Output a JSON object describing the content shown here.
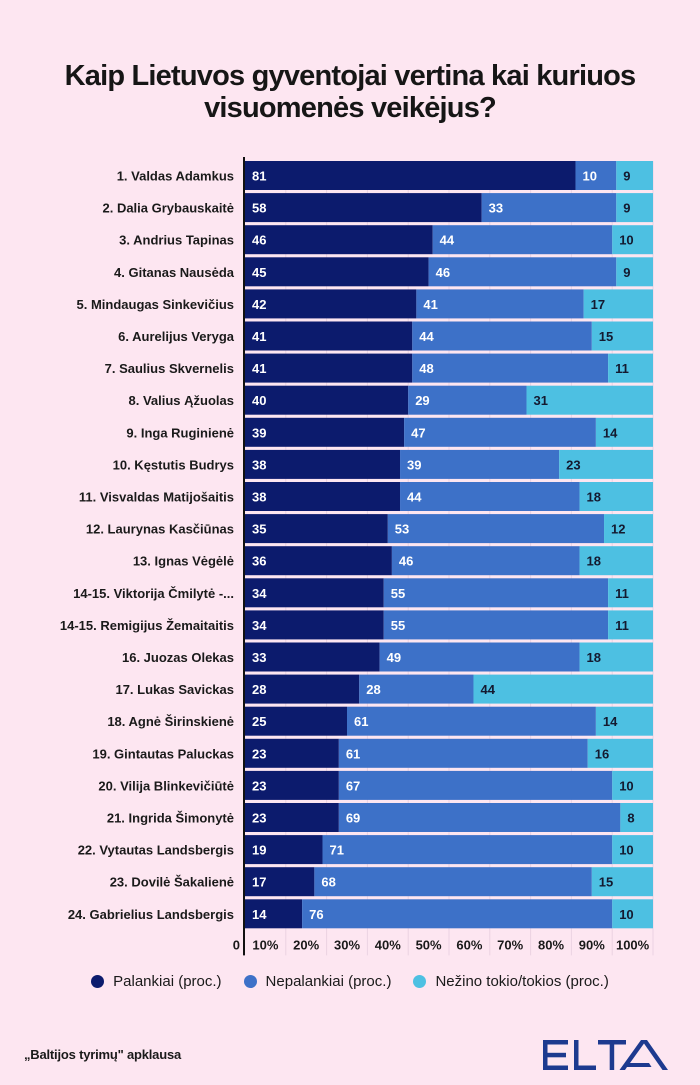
{
  "title_lines": [
    "Kaip Lietuvos gyventojai vertina kai kuriuos",
    "visuomenės veikėjus?"
  ],
  "chart_data": {
    "type": "bar",
    "orientation": "horizontal",
    "stacked": true,
    "title": "Kaip Lietuvos gyventojai vertina kai kuriuos visuomenės veikėjus?",
    "xlabel": "",
    "ylabel": "",
    "xlim": [
      0,
      100
    ],
    "x_ticks": [
      "0",
      "10%",
      "20%",
      "30%",
      "40%",
      "50%",
      "60%",
      "70%",
      "80%",
      "90%",
      "100%"
    ],
    "grid": true,
    "legend_position": "bottom",
    "categories": [
      "1. Valdas Adamkus",
      "2. Dalia Grybauskaitė",
      "3. Andrius Tapinas",
      "4. Gitanas Nausėda",
      "5. Mindaugas Sinkevičius",
      "6. Aurelijus Veryga",
      "7. Saulius Skvernelis",
      "8. Valius Ąžuolas",
      "9. Inga Ruginienė",
      "10. Kęstutis Budrys",
      "11. Visvaldas Matijošaitis",
      "12. Laurynas Kasčiūnas",
      "13. Ignas Vėgėlė",
      "14-15. Viktorija Čmilytė -...",
      "14-15. Remigijus Žemaitaitis",
      "16. Juozas Olekas",
      "17. Lukas Savickas",
      "18. Agnė Širinskienė",
      "19. Gintautas Paluckas",
      "20. Vilija Blinkevičiūtė",
      "21. Ingrida Šimonytė",
      "22. Vytautas Landsbergis",
      "23. Dovilė Šakalienė",
      "24. Gabrielius Landsbergis"
    ],
    "series": [
      {
        "name": "Palankiai (proc.)",
        "color": "#0c1b6d",
        "label_color": "#ffffff",
        "values": [
          81,
          58,
          46,
          45,
          42,
          41,
          41,
          40,
          39,
          38,
          38,
          35,
          36,
          34,
          34,
          33,
          28,
          25,
          23,
          23,
          23,
          19,
          17,
          14
        ]
      },
      {
        "name": "Nepalankiai (proc.)",
        "color": "#3d71c8",
        "label_color": "#ffffff",
        "values": [
          10,
          33,
          44,
          46,
          41,
          44,
          48,
          29,
          47,
          39,
          44,
          53,
          46,
          55,
          55,
          49,
          28,
          61,
          61,
          67,
          69,
          71,
          68,
          76
        ]
      },
      {
        "name": "Nežino tokio/tokios (proc.)",
        "color": "#4dc0e2",
        "label_color": "#141a30",
        "values": [
          9,
          9,
          10,
          9,
          17,
          15,
          11,
          31,
          14,
          23,
          18,
          12,
          18,
          11,
          11,
          18,
          44,
          14,
          16,
          10,
          8,
          10,
          15,
          10
        ]
      }
    ]
  },
  "legend": [
    {
      "label": "Palankiai (proc.)",
      "color": "#0c1b6d"
    },
    {
      "label": "Nepalankiai (proc.)",
      "color": "#3d71c8"
    },
    {
      "label": "Nežino tokio/tokios (proc.)",
      "color": "#4dc0e2"
    }
  ],
  "footer": {
    "source": "„Baltijos tyrimų\" apklausa",
    "logo_text": "ELTA",
    "logo_color": "#1d3a8f"
  }
}
